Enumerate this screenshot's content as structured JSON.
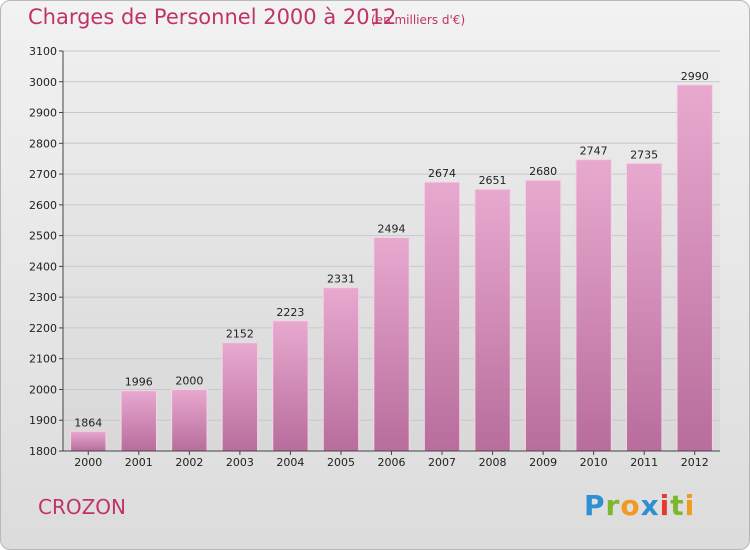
{
  "header": {
    "title": "Charges de Personnel 2000 à 2012",
    "subtitle": "(en milliers d'€)"
  },
  "footer": {
    "city": "CROZON",
    "logo_letters": [
      {
        "ch": "P",
        "color": "#2e8fd1"
      },
      {
        "ch": "r",
        "color": "#7cb82f"
      },
      {
        "ch": "o",
        "color": "#f29a1f"
      },
      {
        "ch": "x",
        "color": "#2e8fd1"
      },
      {
        "ch": "i",
        "color": "#e63a2e"
      },
      {
        "ch": "t",
        "color": "#7cb82f"
      },
      {
        "ch": "i",
        "color": "#f29a1f"
      }
    ]
  },
  "chart_data": {
    "type": "bar",
    "categories": [
      "2000",
      "2001",
      "2002",
      "2003",
      "2004",
      "2005",
      "2006",
      "2007",
      "2008",
      "2009",
      "2010",
      "2011",
      "2012"
    ],
    "values": [
      1864,
      1996,
      2000,
      2152,
      2223,
      2331,
      2494,
      2674,
      2651,
      2680,
      2747,
      2735,
      2990
    ],
    "title": "Charges de Personnel 2000 à 2012",
    "subtitle": "(en milliers d'€)",
    "ylim": [
      1800,
      3100
    ],
    "yticks": [
      1800,
      1900,
      2000,
      2100,
      2200,
      2300,
      2400,
      2500,
      2600,
      2700,
      2800,
      2900,
      3000,
      3100
    ],
    "grid": true,
    "bar_color": "#d98bb8"
  }
}
